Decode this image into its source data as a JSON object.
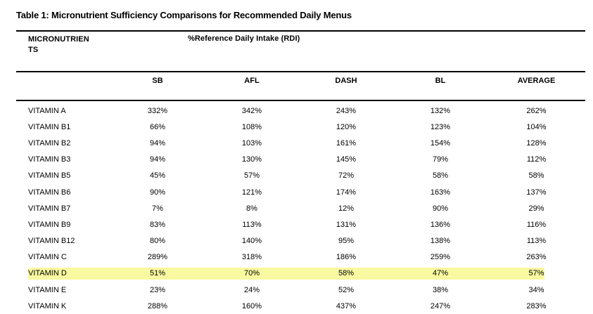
{
  "caption": "Table 1: Micronutrient Sufficiency Comparisons for Recommended Daily Menus",
  "table": {
    "group_header": {
      "col1_line1": "MICRONUTRIEN",
      "col1_line2": "TS",
      "col2": "%Reference Daily Intake (RDI)"
    },
    "columns": [
      "SB",
      "AFL",
      "DASH",
      "BL",
      "AVERAGE"
    ],
    "rows": [
      {
        "label": "VITAMIN A",
        "values": [
          "332%",
          "342%",
          "243%",
          "132%",
          "262%"
        ],
        "highlight": false
      },
      {
        "label": "VITAMIN B1",
        "values": [
          "66%",
          "108%",
          "120%",
          "123%",
          "104%"
        ],
        "highlight": false
      },
      {
        "label": "VITAMIN B2",
        "values": [
          "94%",
          "103%",
          "161%",
          "154%",
          "128%"
        ],
        "highlight": false
      },
      {
        "label": "VITAMIN B3",
        "values": [
          "94%",
          "130%",
          "145%",
          "79%",
          "112%"
        ],
        "highlight": false
      },
      {
        "label": "VITAMIN B5",
        "values": [
          "45%",
          "57%",
          "72%",
          "58%",
          "58%"
        ],
        "highlight": false
      },
      {
        "label": "VITAMIN B6",
        "values": [
          "90%",
          "121%",
          "174%",
          "163%",
          "137%"
        ],
        "highlight": false
      },
      {
        "label": "VITAMIN B7",
        "values": [
          "7%",
          "8%",
          "12%",
          "90%",
          "29%"
        ],
        "highlight": false
      },
      {
        "label": "VITAMIN B9",
        "values": [
          "83%",
          "113%",
          "131%",
          "136%",
          "116%"
        ],
        "highlight": false
      },
      {
        "label": "VITAMIN B12",
        "values": [
          "80%",
          "140%",
          "95%",
          "138%",
          "113%"
        ],
        "highlight": false
      },
      {
        "label": "VITAMIN C",
        "values": [
          "289%",
          "318%",
          "186%",
          "259%",
          "263%"
        ],
        "highlight": false
      },
      {
        "label": "VITAMIN D",
        "values": [
          "51%",
          "70%",
          "58%",
          "47%",
          "57%"
        ],
        "highlight": true
      },
      {
        "label": "VITAMIN E",
        "values": [
          "23%",
          "24%",
          "52%",
          "38%",
          "34%"
        ],
        "highlight": false
      },
      {
        "label": "VITAMIN K",
        "values": [
          "288%",
          "160%",
          "437%",
          "247%",
          "283%"
        ],
        "highlight": false
      }
    ],
    "highlight_color": "#f9f9a1",
    "text_color": "#000000"
  }
}
